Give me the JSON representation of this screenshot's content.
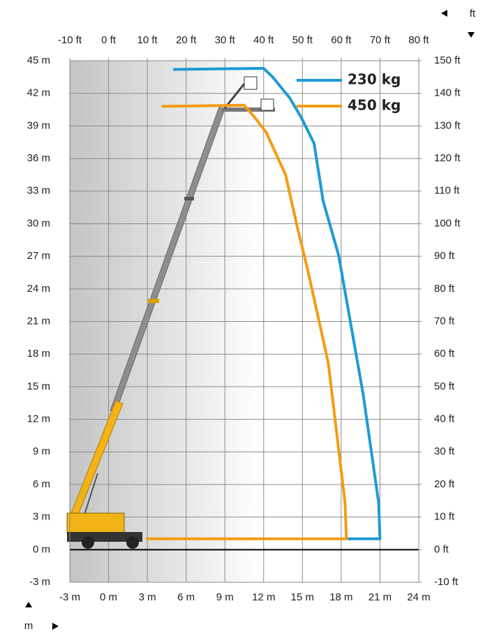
{
  "chart_data": {
    "type": "line",
    "x_unit_label": "m",
    "y2_unit_label": "ft",
    "xlim": [
      -3,
      24
    ],
    "ylim": [
      -3,
      45
    ],
    "x2lim": [
      -10,
      80
    ],
    "y2lim": [
      -10,
      150
    ],
    "grid": true,
    "xticks": [
      {
        "value": -3,
        "label": "-3 m"
      },
      {
        "value": 0,
        "label": "0 m"
      },
      {
        "value": 3,
        "label": "3 m"
      },
      {
        "value": 6,
        "label": "6 m"
      },
      {
        "value": 9,
        "label": "9 m"
      },
      {
        "value": 12,
        "label": "12 m"
      },
      {
        "value": 15,
        "label": "15 m"
      },
      {
        "value": 18,
        "label": "18 m"
      },
      {
        "value": 21,
        "label": "21 m"
      },
      {
        "value": 24,
        "label": "24 m"
      }
    ],
    "yticks": [
      {
        "value": -3,
        "label": "-3 m"
      },
      {
        "value": 0,
        "label": "0 m"
      },
      {
        "value": 3,
        "label": "3 m"
      },
      {
        "value": 6,
        "label": "6 m"
      },
      {
        "value": 9,
        "label": "9 m"
      },
      {
        "value": 12,
        "label": "12 m"
      },
      {
        "value": 15,
        "label": "15 m"
      },
      {
        "value": 18,
        "label": "18 m"
      },
      {
        "value": 21,
        "label": "21 m"
      },
      {
        "value": 24,
        "label": "24 m"
      },
      {
        "value": 27,
        "label": "27 m"
      },
      {
        "value": 30,
        "label": "30 m"
      },
      {
        "value": 33,
        "label": "33 m"
      },
      {
        "value": 36,
        "label": "36 m"
      },
      {
        "value": 39,
        "label": "39 m"
      },
      {
        "value": 42,
        "label": "42 m"
      },
      {
        "value": 45,
        "label": "45 m"
      }
    ],
    "x2ticks": [
      {
        "value": -10,
        "label": "-10 ft"
      },
      {
        "value": 0,
        "label": "0 ft"
      },
      {
        "value": 10,
        "label": "10 ft"
      },
      {
        "value": 20,
        "label": "20 ft"
      },
      {
        "value": 30,
        "label": "30 ft"
      },
      {
        "value": 40,
        "label": "40 ft"
      },
      {
        "value": 50,
        "label": "50 ft"
      },
      {
        "value": 60,
        "label": "60 ft"
      },
      {
        "value": 70,
        "label": "70 ft"
      },
      {
        "value": 80,
        "label": "80 ft"
      }
    ],
    "y2ticks": [
      {
        "value": -10,
        "label": "-10 ft"
      },
      {
        "value": 0,
        "label": "0 ft"
      },
      {
        "value": 10,
        "label": "10 ft"
      },
      {
        "value": 20,
        "label": "20 ft"
      },
      {
        "value": 30,
        "label": "30 ft"
      },
      {
        "value": 40,
        "label": "40 ft"
      },
      {
        "value": 50,
        "label": "50 ft"
      },
      {
        "value": 60,
        "label": "60 ft"
      },
      {
        "value": 70,
        "label": "70 ft"
      },
      {
        "value": 80,
        "label": "80 ft"
      },
      {
        "value": 90,
        "label": "90 ft"
      },
      {
        "value": 100,
        "label": "100 ft"
      },
      {
        "value": 110,
        "label": "110 ft"
      },
      {
        "value": 120,
        "label": "120 ft"
      },
      {
        "value": 130,
        "label": "130 ft"
      },
      {
        "value": 140,
        "label": "140 ft"
      },
      {
        "value": 150,
        "label": "150 ft"
      }
    ],
    "series": [
      {
        "name": "230 kg",
        "color": "#1e9ad6",
        "x": [
          5.0,
          12.0,
          12.7,
          14.0,
          14.9,
          15.9,
          16.6,
          17.8,
          19.7,
          20.9,
          21.0,
          18.5
        ],
        "values": [
          44.2,
          44.3,
          43.5,
          41.6,
          39.8,
          37.4,
          32.1,
          27.1,
          14.3,
          4.3,
          1.0,
          1.0
        ]
      },
      {
        "name": "450 kg",
        "color": "#f39c12",
        "x": [
          4.1,
          10.5,
          11.3,
          12.2,
          13.7,
          14.6,
          15.4,
          17.0,
          18.3,
          18.4,
          2.9
        ],
        "values": [
          40.8,
          40.9,
          39.8,
          38.4,
          34.5,
          29.7,
          25.8,
          17.2,
          4.3,
          1.0,
          1.0
        ]
      }
    ]
  }
}
